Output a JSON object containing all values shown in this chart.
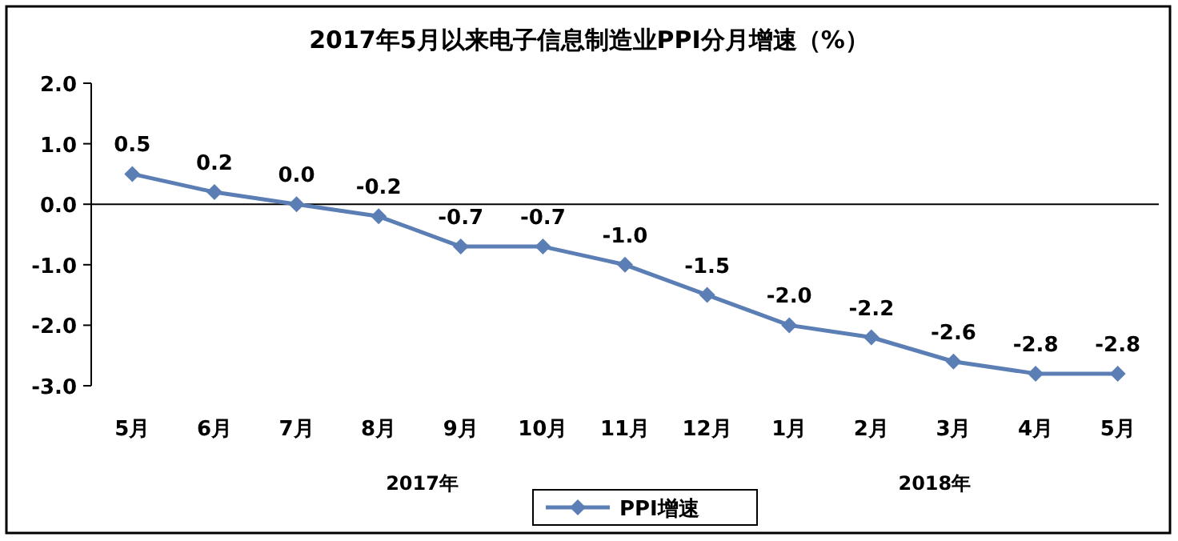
{
  "chart_data": {
    "type": "line",
    "title": "2017年5月以来电子信息制造业PPI分月增速（%）",
    "categories": [
      "5月",
      "6月",
      "7月",
      "8月",
      "9月",
      "10月",
      "11月",
      "12月",
      "1月",
      "2月",
      "3月",
      "4月",
      "5月"
    ],
    "series": [
      {
        "name": "PPI增速",
        "color": "#5b7fb5",
        "values": [
          0.5,
          0.2,
          0.0,
          -0.2,
          -0.7,
          -0.7,
          -1.0,
          -1.5,
          -2.0,
          -2.2,
          -2.6,
          -2.8,
          -2.8
        ],
        "value_labels": [
          "0.5",
          "0.2",
          "0.0",
          "-0.2",
          "-0.7",
          "-0.7",
          "-1.0",
          "-1.5",
          "-2.0",
          "-2.2",
          "-2.6",
          "-2.8",
          "-2.8"
        ]
      }
    ],
    "ylim": [
      -3.0,
      2.0
    ],
    "yticks": [
      {
        "value": 2,
        "label": "2.0"
      },
      {
        "value": 1,
        "label": "1.0"
      },
      {
        "value": 0,
        "label": "0.0"
      },
      {
        "value": -1,
        "label": "-1.0"
      },
      {
        "value": -2,
        "label": "-2.0"
      },
      {
        "value": -3,
        "label": "-3.0"
      }
    ],
    "annotations": [
      "2017年",
      "2018年"
    ],
    "legend": "bottom",
    "marker": "diamond"
  }
}
